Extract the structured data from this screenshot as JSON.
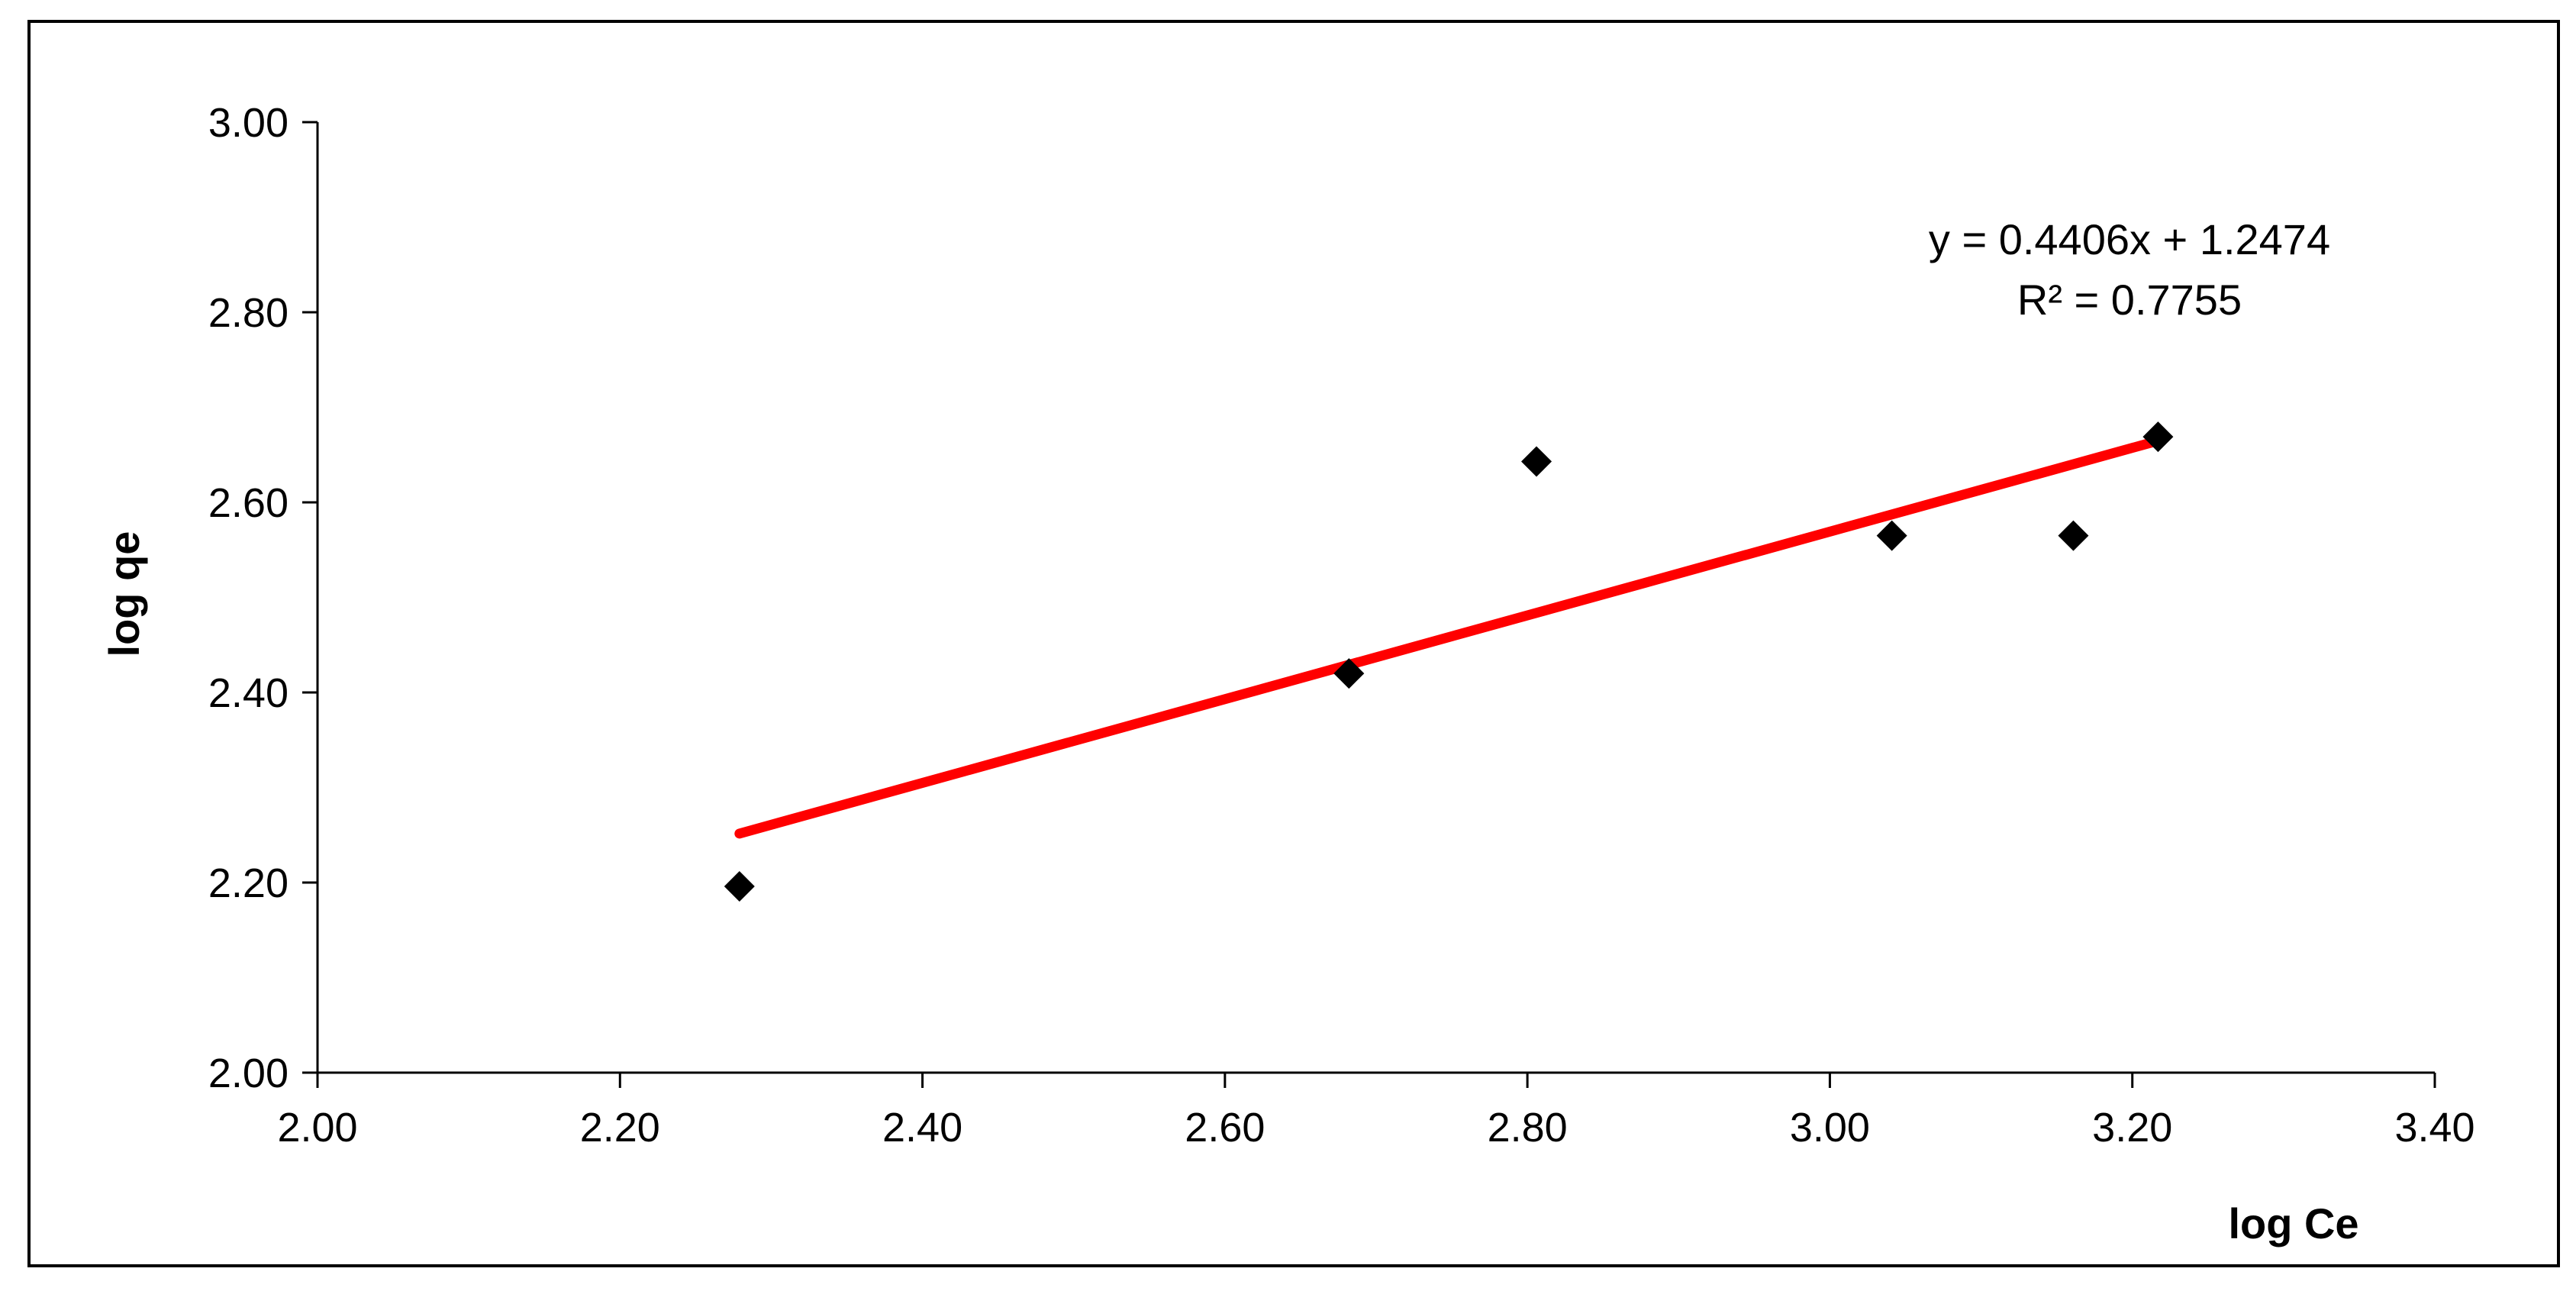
{
  "chart_data": {
    "type": "scatter",
    "xlabel": "log Ce",
    "ylabel": "log qe",
    "xlim": [
      2.0,
      3.4
    ],
    "ylim": [
      2.0,
      3.0
    ],
    "x_ticks": [
      "2.00",
      "2.20",
      "2.40",
      "2.60",
      "2.80",
      "3.00",
      "3.20",
      "3.40"
    ],
    "y_ticks": [
      "2.00",
      "2.20",
      "2.40",
      "2.60",
      "2.80",
      "3.00"
    ],
    "grid": false,
    "legend": "none",
    "series": [
      {
        "points": [
          {
            "x": 2.279,
            "y": 2.196
          },
          {
            "x": 2.682,
            "y": 2.42
          },
          {
            "x": 2.806,
            "y": 2.643
          },
          {
            "x": 3.041,
            "y": 2.565
          },
          {
            "x": 3.161,
            "y": 2.565
          },
          {
            "x": 3.217,
            "y": 2.669
          }
        ],
        "marker": "diamond",
        "color": "#000000"
      }
    ],
    "trendline": {
      "slope": 0.4406,
      "intercept": 1.2474,
      "x_range": [
        2.279,
        3.217
      ],
      "color": "#ff0000",
      "equation": "y = 0.4406x + 1.2474",
      "r_squared": "R² = 0.7755"
    }
  }
}
